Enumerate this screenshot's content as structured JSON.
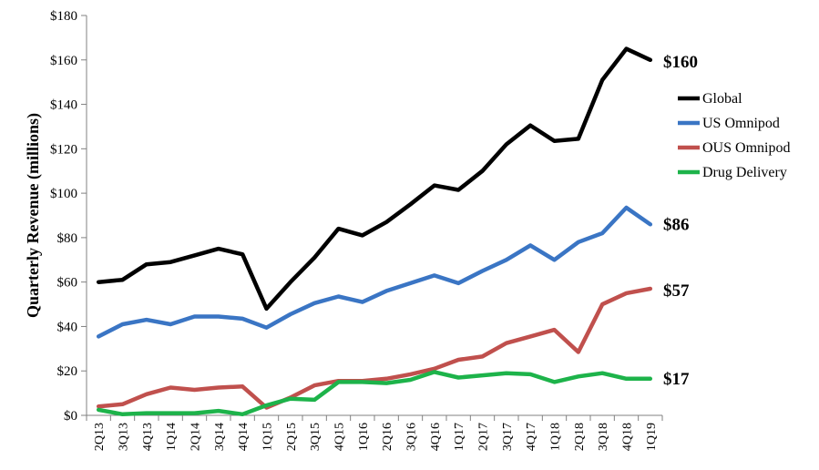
{
  "chart_data": {
    "type": "line",
    "title": "",
    "xlabel": "",
    "ylabel": "Quarterly Revenue (millions)",
    "ylim": [
      0,
      180
    ],
    "y_ticks": [
      0,
      20,
      40,
      60,
      80,
      100,
      120,
      140,
      160,
      180
    ],
    "y_tick_labels": [
      "$0",
      "$20",
      "$40",
      "$60",
      "$80",
      "$100",
      "$120",
      "$140",
      "$160",
      "$180"
    ],
    "grid": false,
    "legend_position": "right",
    "categories": [
      "2Q13",
      "3Q13",
      "4Q13",
      "1Q14",
      "2Q14",
      "3Q14",
      "4Q14",
      "1Q15",
      "2Q15",
      "3Q15",
      "4Q15",
      "1Q16",
      "2Q16",
      "3Q16",
      "4Q16",
      "1Q17",
      "2Q17",
      "3Q17",
      "4Q17",
      "1Q18",
      "2Q18",
      "3Q18",
      "4Q18",
      "1Q19"
    ],
    "series": [
      {
        "name": "Global",
        "color": "#000000",
        "values": [
          60,
          61,
          68,
          69,
          72,
          75,
          72.5,
          48,
          60,
          71,
          84,
          81,
          87,
          95,
          103.5,
          101.5,
          110,
          122,
          130.5,
          123.5,
          124.5,
          151,
          165,
          160
        ],
        "end_label": "$160"
      },
      {
        "name": "US Omnipod",
        "color": "#3a75c4",
        "values": [
          35.5,
          41,
          43,
          41,
          44.5,
          44.5,
          43.5,
          39.5,
          45.5,
          50.5,
          53.5,
          51,
          56,
          59.5,
          63,
          59.5,
          65,
          70,
          76.5,
          70,
          78,
          82,
          93.5,
          86
        ],
        "end_label": "$86"
      },
      {
        "name": "OUS Omnipod",
        "color": "#c0504d",
        "values": [
          4,
          5,
          9.5,
          12.5,
          11.5,
          12.5,
          13,
          3.5,
          8,
          13.5,
          15.5,
          15.5,
          16.5,
          18.5,
          21,
          25,
          26.5,
          32.5,
          35.5,
          38.5,
          28.5,
          50,
          55,
          57
        ],
        "end_label": "$57"
      },
      {
        "name": "Drug Delivery",
        "color": "#1db34a",
        "values": [
          2.5,
          0.5,
          1,
          1,
          1,
          2,
          0.5,
          4.5,
          7.5,
          7,
          15,
          15,
          14.5,
          16,
          19.5,
          17,
          18,
          19,
          18.5,
          15,
          17.5,
          19,
          16.5,
          16.5
        ],
        "end_label": "$17"
      }
    ]
  }
}
